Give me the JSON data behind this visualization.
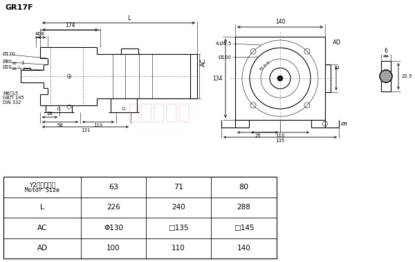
{
  "title": "GR17F",
  "bg_color": "#ffffff",
  "line_color": "#000000",
  "table_header": "Y2电机机座号\nMotor Size",
  "table_sizes": [
    "63",
    "71",
    "80"
  ],
  "table_L": [
    "226",
    "240",
    "288"
  ],
  "table_AC": [
    "Φ130",
    "□135",
    "□145"
  ],
  "table_AD": [
    "100",
    "110",
    "140"
  ],
  "watermark": "正瓦玛传动"
}
